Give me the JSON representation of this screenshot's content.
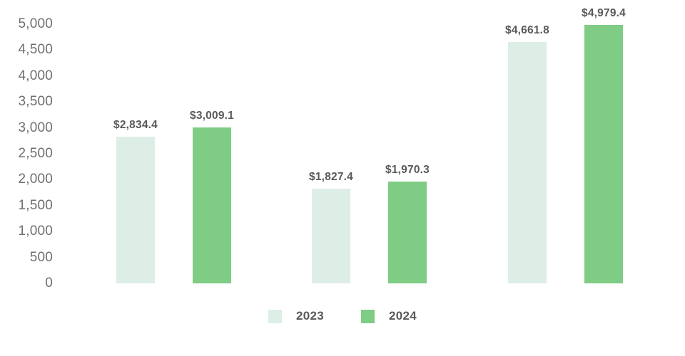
{
  "chart_data": {
    "type": "bar",
    "title": "",
    "xlabel": "",
    "ylabel": "",
    "categories": [
      "",
      "",
      ""
    ],
    "series": [
      {
        "name": "2023",
        "color": "#ddeee6",
        "values": [
          2834.4,
          1827.4,
          4661.8
        ],
        "data_labels": [
          "$2,834.4",
          "$1,827.4",
          "$4,661.8"
        ]
      },
      {
        "name": "2024",
        "color": "#7fcc85",
        "values": [
          3009.1,
          1970.3,
          4979.4
        ],
        "data_labels": [
          "$3,009.1",
          "$1,970.3",
          "$4,979.4"
        ]
      }
    ],
    "y_axis": {
      "min": 0,
      "max": 5000,
      "step": 500,
      "tick_labels": [
        "0",
        "500",
        "1,000",
        "1,500",
        "2,000",
        "2,500",
        "3,000",
        "3,500",
        "4,000",
        "4,500",
        "5,000"
      ]
    },
    "grid": false,
    "axis_lines": false,
    "legend_position": "bottom",
    "legend": [
      {
        "label": "2023",
        "color": "#ddeee6"
      },
      {
        "label": "2024",
        "color": "#7fcc85"
      }
    ],
    "colors": {
      "tick_label": "#6f6f6f",
      "data_label": "#58595b",
      "background": "#ffffff"
    }
  }
}
